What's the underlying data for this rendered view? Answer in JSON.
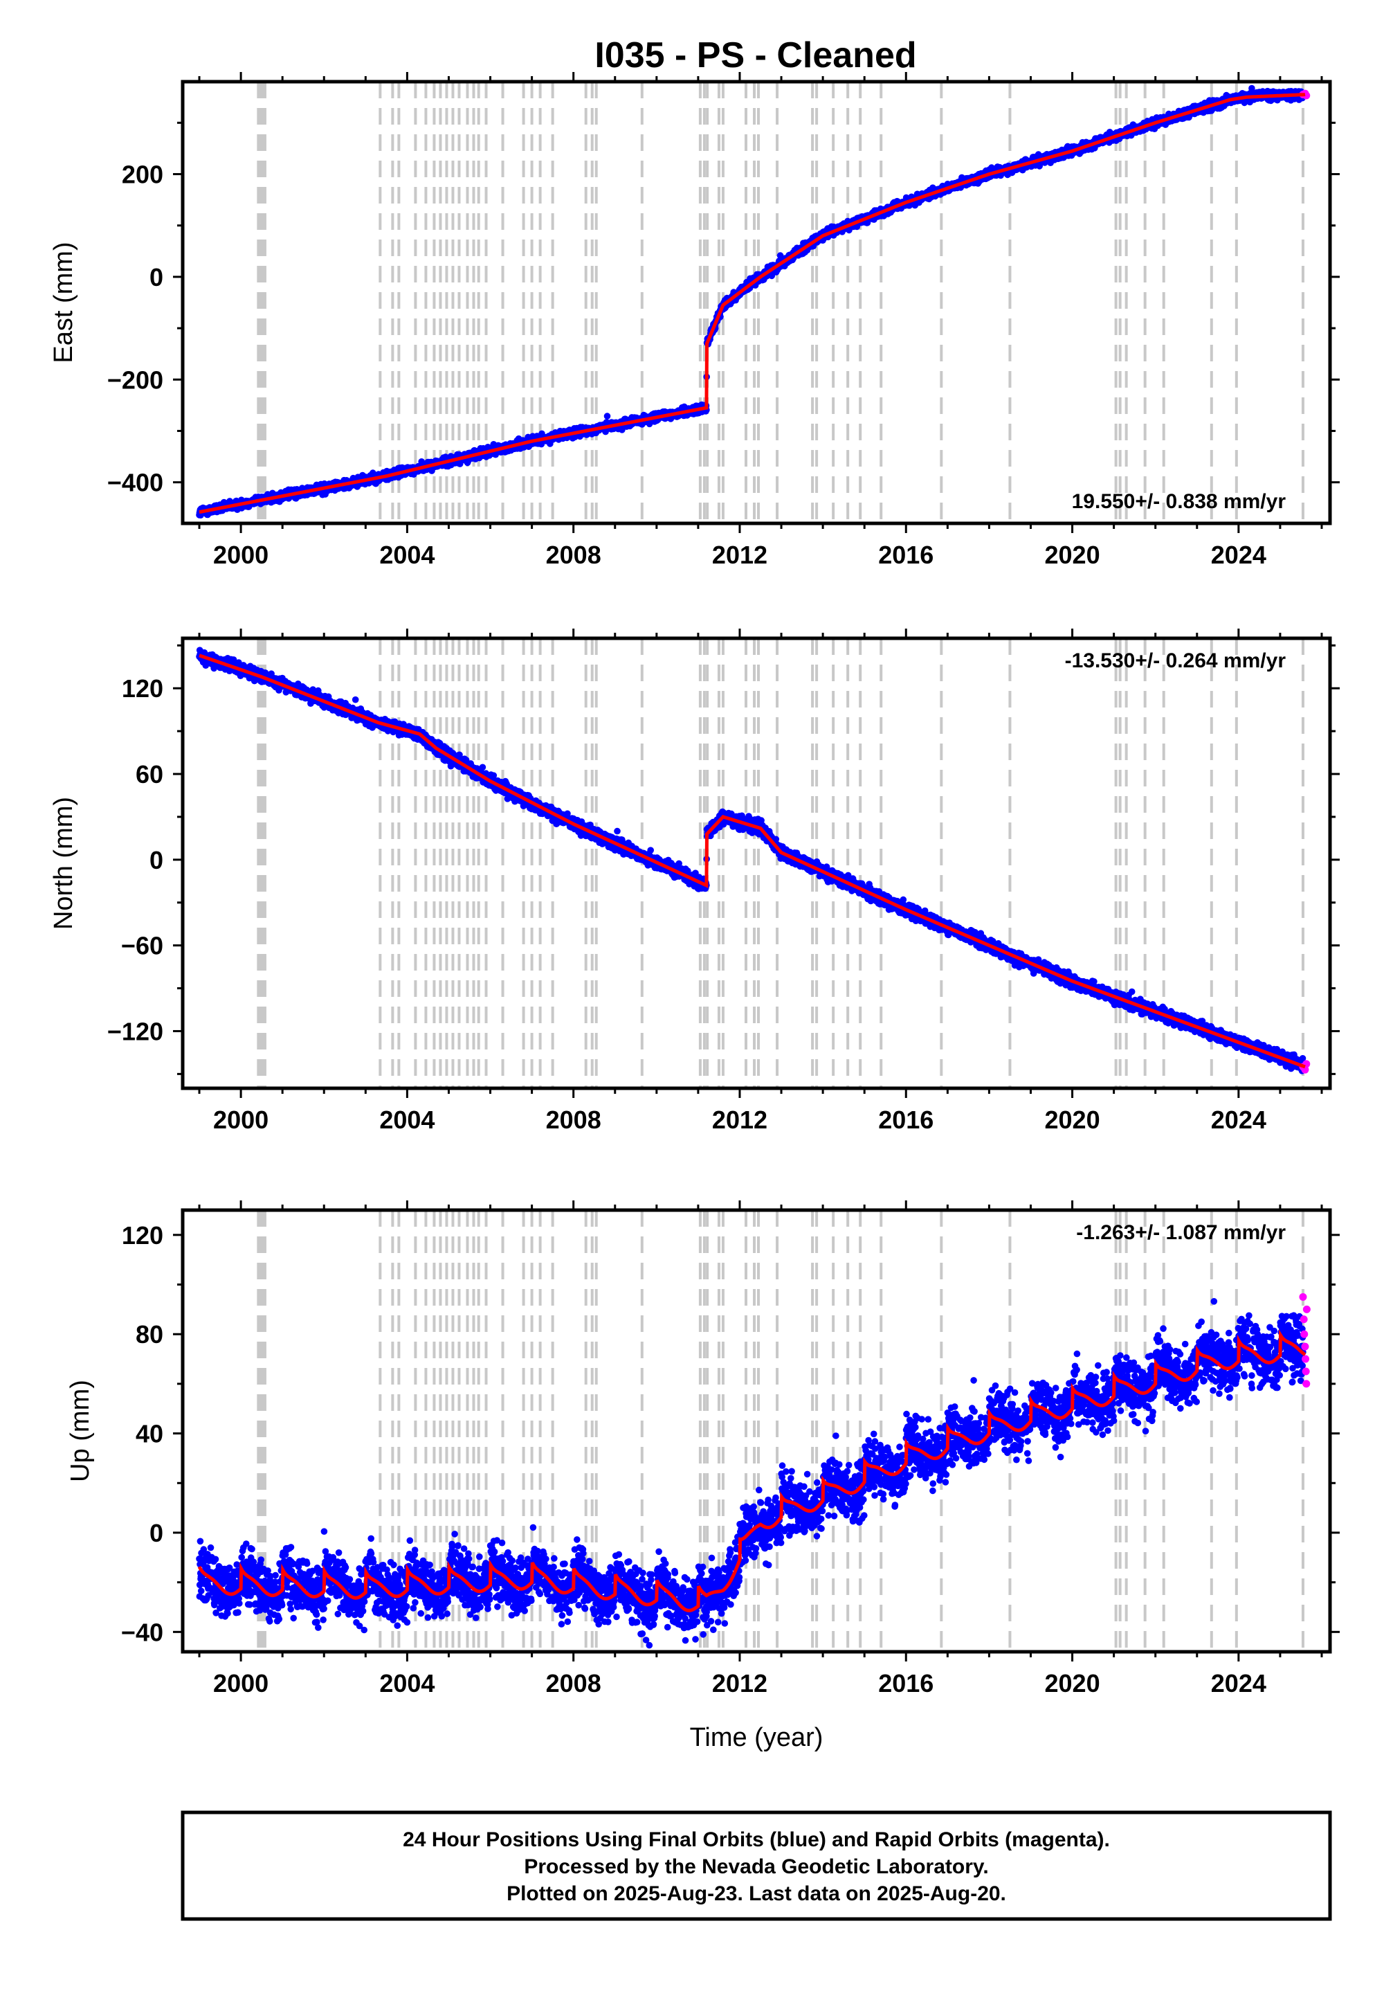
{
  "title": "I035  - PS - Cleaned",
  "footer": {
    "lines": [
      "24 Hour Positions Using Final Orbits (blue) and Rapid Orbits (magenta).",
      "Processed by the Nevada Geodetic Laboratory.",
      "Plotted on 2025-Aug-23. Last data on 2025-Aug-20."
    ]
  },
  "colors": {
    "final_orbits": "#0000ff",
    "rapid_orbits": "#ff00ff",
    "model_fit": "#ff0000",
    "event_lines": "#c8c8c8",
    "frame": "#000000"
  },
  "chart_data": [
    {
      "type": "scatter",
      "component": "east",
      "ylabel": "East (mm)",
      "xlim": [
        1998.6,
        2026.2
      ],
      "ylim": [
        -480,
        380
      ],
      "xticks": [
        2000,
        2004,
        2008,
        2012,
        2016,
        2020,
        2024
      ],
      "yticks": [
        -400,
        -200,
        0,
        200
      ],
      "rate_label": "19.550+/- 0.838 mm/yr",
      "rate_position": "bottom-right",
      "model_knots": [
        [
          1999.0,
          -458
        ],
        [
          2003.5,
          -388
        ],
        [
          2007.0,
          -320
        ],
        [
          2011.2,
          -255
        ],
        [
          2011.21,
          -130
        ],
        [
          2011.6,
          -55
        ],
        [
          2012.5,
          0
        ],
        [
          2014.0,
          80
        ],
        [
          2016.0,
          145
        ],
        [
          2018.0,
          200
        ],
        [
          2020.0,
          245
        ],
        [
          2022.0,
          300
        ],
        [
          2023.8,
          345
        ],
        [
          2024.2,
          350
        ],
        [
          2025.6,
          355
        ]
      ],
      "noise_mm": 6,
      "step_events": [
        2011.2
      ],
      "seasonal_amplitude_mm": 0,
      "rapid_points": [
        [
          2025.55,
          355
        ],
        [
          2025.6,
          357
        ],
        [
          2025.63,
          353
        ]
      ]
    },
    {
      "type": "scatter",
      "component": "north",
      "ylabel": "North (mm)",
      "xlim": [
        1998.6,
        2026.2
      ],
      "ylim": [
        -160,
        155
      ],
      "xticks": [
        2000,
        2004,
        2008,
        2012,
        2016,
        2020,
        2024
      ],
      "yticks": [
        -120,
        -60,
        0,
        60,
        120
      ],
      "rate_label": "-13.530+/- 0.264 mm/yr",
      "rate_position": "top-right",
      "model_knots": [
        [
          1999.0,
          143
        ],
        [
          2000.5,
          128
        ],
        [
          2003.3,
          96
        ],
        [
          2004.3,
          88
        ],
        [
          2004.7,
          78
        ],
        [
          2006.0,
          55
        ],
        [
          2008.0,
          25
        ],
        [
          2011.2,
          -18
        ],
        [
          2011.21,
          18
        ],
        [
          2011.6,
          30
        ],
        [
          2012.5,
          22
        ],
        [
          2013.0,
          5
        ],
        [
          2016.0,
          -35
        ],
        [
          2020.0,
          -85
        ],
        [
          2025.6,
          -145
        ]
      ],
      "noise_mm": 3,
      "step_events": [
        2011.2
      ],
      "seasonal_amplitude_mm": 0,
      "rapid_points": [
        [
          2025.55,
          -145
        ],
        [
          2025.6,
          -147
        ],
        [
          2025.63,
          -143
        ]
      ]
    },
    {
      "type": "scatter",
      "component": "up",
      "ylabel": "Up (mm)",
      "xlabel": "Time (year)",
      "xlim": [
        1998.6,
        2026.2
      ],
      "ylim": [
        -48,
        130
      ],
      "xticks": [
        2000,
        2004,
        2008,
        2012,
        2016,
        2020,
        2024
      ],
      "yticks": [
        -40,
        0,
        40,
        80,
        120
      ],
      "rate_label": "-1.263+/- 1.087 mm/yr",
      "rate_position": "top-right",
      "model_knots": [
        [
          1999.0,
          -20
        ],
        [
          2003.0,
          -22
        ],
        [
          2007.0,
          -18
        ],
        [
          2011.2,
          -28
        ],
        [
          2011.6,
          -20
        ],
        [
          2012.5,
          5
        ],
        [
          2014.0,
          15
        ],
        [
          2016.0,
          30
        ],
        [
          2018.0,
          42
        ],
        [
          2020.0,
          52
        ],
        [
          2022.0,
          62
        ],
        [
          2023.5,
          70
        ],
        [
          2025.6,
          75
        ]
      ],
      "noise_mm": 8,
      "step_events": [],
      "seasonal_amplitude_mm": 6,
      "rapid_points": [
        [
          2025.55,
          95
        ],
        [
          2025.57,
          86
        ],
        [
          2025.58,
          80
        ],
        [
          2025.6,
          75
        ],
        [
          2025.61,
          70
        ],
        [
          2025.62,
          65
        ],
        [
          2025.63,
          60
        ],
        [
          2025.64,
          90
        ]
      ]
    }
  ],
  "event_lines_year": [
    2000.42,
    2000.46,
    2000.5,
    2000.54,
    2000.58,
    2003.35,
    2003.65,
    2003.8,
    2004.2,
    2004.45,
    2004.65,
    2004.8,
    2004.95,
    2005.1,
    2005.25,
    2005.45,
    2005.6,
    2005.72,
    2005.9,
    2006.3,
    2006.8,
    2007.0,
    2007.2,
    2007.5,
    2008.3,
    2008.45,
    2008.55,
    2009.65,
    2011.05,
    2011.15,
    2011.22,
    2011.5,
    2011.6,
    2012.15,
    2012.35,
    2012.45,
    2012.9,
    2013.75,
    2013.85,
    2014.25,
    2014.6,
    2014.9,
    2015.4,
    2016.85,
    2018.5,
    2021.05,
    2021.15,
    2021.3,
    2021.75,
    2022.2,
    2023.35,
    2023.95,
    2025.55
  ]
}
